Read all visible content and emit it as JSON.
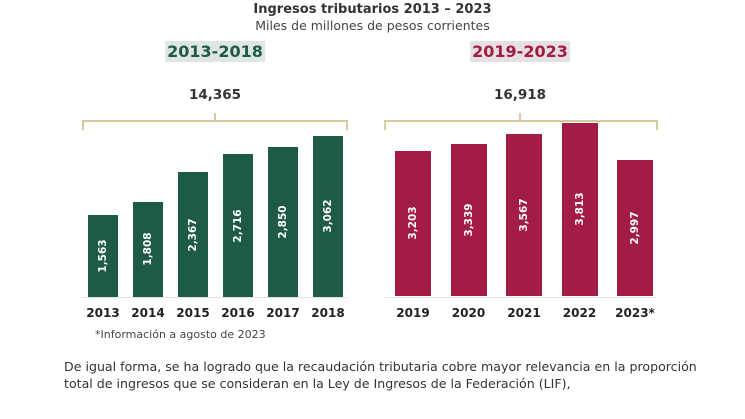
{
  "chart_data": {
    "type": "bar",
    "title": "Ingresos tributarios 2013 – 2023",
    "subtitle": "Miles de millones de pesos corrientes",
    "groups": [
      {
        "label": "2013-2018",
        "total": "14,365",
        "color": "#1e5b47",
        "label_bg": "#dfe6e2",
        "categories": [
          "2013",
          "2014",
          "2015",
          "2016",
          "2017",
          "2018"
        ],
        "values": [
          1563,
          1808,
          2367,
          2716,
          2850,
          3062
        ],
        "value_labels": [
          "1,563",
          "1,808",
          "2,367",
          "2,716",
          "2,850",
          "3,062"
        ]
      },
      {
        "label": "2019-2023",
        "total": "16,918",
        "color": "#a31c44",
        "label_bg": "#e6e0e2",
        "categories": [
          "2019",
          "2020",
          "2021",
          "2022",
          "2023*"
        ],
        "values": [
          3203,
          3339,
          3567,
          3813,
          2997
        ],
        "value_labels": [
          "3,203",
          "3,339",
          "3,567",
          "3,813",
          "2,997"
        ]
      }
    ],
    "footnote": "*Información a agosto de 2023"
  },
  "paragraph": "De igual forma, se ha logrado que la recaudación tributaria cobre mayor relevancia en la proporción total de ingresos que se consideran en la Ley de Ingresos de la Federación (LIF),"
}
